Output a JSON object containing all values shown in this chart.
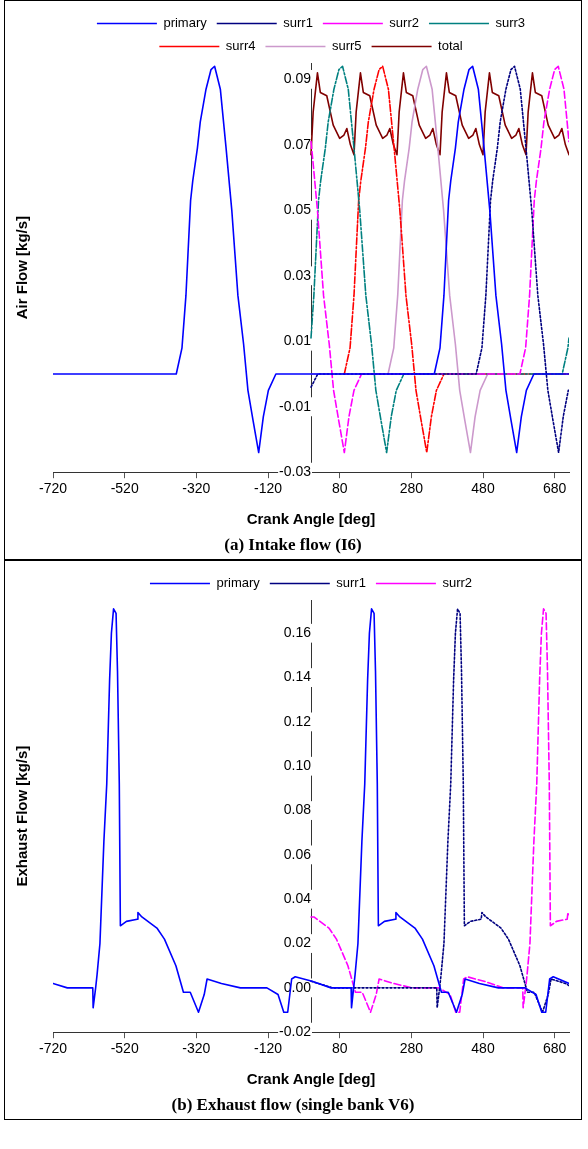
{
  "chart_data": [
    {
      "type": "line",
      "title": "(a)  Intake flow (I6)",
      "xlabel": "Crank Angle [deg]",
      "ylabel": "Air Flow [kg/s]",
      "legend": "top",
      "xlim": [
        -720,
        720
      ],
      "xticks": [
        -720,
        -520,
        -320,
        -120,
        80,
        280,
        480,
        680
      ],
      "ylim": [
        -0.03,
        0.095
      ],
      "yticks": [
        -0.03,
        -0.01,
        0.01,
        0.03,
        0.05,
        0.07,
        0.09
      ],
      "series": [
        {
          "name": "primary",
          "color": "#0000ff",
          "line_style": "solid",
          "x": [
            -720,
            -376,
            -360,
            -349,
            -336,
            -330,
            -317,
            -309,
            -293,
            -279,
            -269,
            -253,
            -237,
            -221,
            -204,
            -188,
            -176,
            -162,
            -146,
            -133,
            -119,
            -98,
            344,
            360,
            371,
            384,
            390,
            403,
            411,
            427,
            441,
            451,
            467,
            483,
            499,
            516,
            532,
            544,
            558,
            574,
            587,
            601,
            622,
            720
          ],
          "values": [
            0,
            0,
            0.008,
            0.024,
            0.053,
            0.059,
            0.069,
            0.077,
            0.087,
            0.093,
            0.094,
            0.087,
            0.069,
            0.05,
            0.024,
            0.009,
            -0.005,
            -0.014,
            -0.024,
            -0.013,
            -0.005,
            0,
            0,
            0.008,
            0.024,
            0.053,
            0.059,
            0.069,
            0.077,
            0.087,
            0.093,
            0.094,
            0.087,
            0.069,
            0.05,
            0.024,
            0.009,
            -0.005,
            -0.014,
            -0.024,
            -0.013,
            -0.005,
            0,
            0
          ]
        },
        {
          "name": "surr1",
          "color": "#000080",
          "line_style": "dotted",
          "x": [
            0,
            19,
            461,
            477,
            488,
            501,
            507,
            520,
            528,
            544,
            558,
            568,
            584,
            600,
            616,
            633,
            649,
            661,
            675,
            691,
            704,
            718,
            720
          ],
          "values": [
            -0.004,
            0,
            0,
            0.008,
            0.024,
            0.053,
            0.059,
            0.069,
            0.077,
            0.087,
            0.093,
            0.094,
            0.087,
            0.069,
            0.05,
            0.024,
            0.009,
            -0.005,
            -0.014,
            -0.024,
            -0.013,
            -0.005,
            -0.005
          ]
        },
        {
          "name": "surr2",
          "color": "#ff00ff",
          "line_style": "dashed",
          "x": [
            0,
            2,
            18,
            35,
            51,
            63,
            77,
            93,
            106,
            120,
            141,
            583,
            599,
            610,
            623,
            629,
            642,
            650,
            666,
            680,
            690,
            706,
            720
          ],
          "values": [
            0.071,
            0.069,
            0.05,
            0.024,
            0.009,
            -0.005,
            -0.014,
            -0.024,
            -0.013,
            -0.005,
            0,
            0,
            0.008,
            0.024,
            0.053,
            0.059,
            0.069,
            0.077,
            0.087,
            0.093,
            0.094,
            0.087,
            0.071
          ]
        },
        {
          "name": "surr3",
          "color": "#008080",
          "line_style": "dashdot",
          "x": [
            0,
            8,
            21,
            27,
            40,
            48,
            64,
            78,
            88,
            104,
            120,
            136,
            153,
            169,
            181,
            195,
            211,
            224,
            238,
            259,
            701,
            717,
            720
          ],
          "values": [
            0.011,
            0.024,
            0.053,
            0.059,
            0.069,
            0.077,
            0.087,
            0.093,
            0.094,
            0.087,
            0.069,
            0.05,
            0.024,
            0.009,
            -0.005,
            -0.014,
            -0.024,
            -0.013,
            -0.005,
            0,
            0,
            0.008,
            0.011
          ]
        },
        {
          "name": "surr4",
          "color": "#ff0000",
          "line_style": "dashdot",
          "x": [
            93,
            109,
            120,
            133,
            139,
            152,
            160,
            176,
            190,
            200,
            216,
            232,
            248,
            265,
            281,
            293,
            307,
            323,
            336,
            350,
            371,
            720
          ],
          "values": [
            0,
            0.008,
            0.024,
            0.053,
            0.059,
            0.069,
            0.077,
            0.087,
            0.093,
            0.094,
            0.087,
            0.069,
            0.05,
            0.024,
            0.009,
            -0.005,
            -0.014,
            -0.024,
            -0.013,
            -0.005,
            0,
            0
          ]
        },
        {
          "name": "surr5",
          "color": "#cc99cc",
          "line_style": "solid",
          "x": [
            0,
            215,
            231,
            242,
            255,
            261,
            274,
            282,
            298,
            312,
            322,
            338,
            354,
            370,
            387,
            403,
            415,
            429,
            445,
            458,
            472,
            493,
            720
          ],
          "values": [
            0,
            0,
            0.008,
            0.024,
            0.053,
            0.059,
            0.069,
            0.077,
            0.087,
            0.093,
            0.094,
            0.087,
            0.069,
            0.05,
            0.024,
            0.009,
            -0.005,
            -0.014,
            -0.024,
            -0.013,
            -0.005,
            0,
            0
          ]
        },
        {
          "name": "total",
          "color": "#800000",
          "line_style": "solid",
          "x": [
            0,
            6,
            18,
            26,
            44,
            62,
            80,
            92,
            100,
            110,
            120,
            126,
            138,
            146,
            164,
            182,
            200,
            212,
            220,
            230,
            240,
            246,
            258,
            266,
            284,
            302,
            320,
            332,
            340,
            350,
            360,
            366,
            378,
            386,
            404,
            422,
            440,
            452,
            460,
            470,
            480,
            486,
            498,
            506,
            524,
            542,
            560,
            572,
            580,
            590,
            600,
            606,
            618,
            626,
            644,
            662,
            680,
            692,
            700,
            710,
            720
          ],
          "values": [
            0.067,
            0.08,
            0.092,
            0.086,
            0.085,
            0.076,
            0.072,
            0.073,
            0.075,
            0.07,
            0.067,
            0.08,
            0.092,
            0.086,
            0.085,
            0.076,
            0.072,
            0.073,
            0.075,
            0.07,
            0.067,
            0.08,
            0.092,
            0.086,
            0.085,
            0.076,
            0.072,
            0.073,
            0.075,
            0.07,
            0.067,
            0.08,
            0.092,
            0.086,
            0.085,
            0.076,
            0.072,
            0.073,
            0.075,
            0.07,
            0.067,
            0.08,
            0.092,
            0.086,
            0.085,
            0.076,
            0.072,
            0.073,
            0.075,
            0.07,
            0.067,
            0.08,
            0.092,
            0.086,
            0.085,
            0.076,
            0.072,
            0.073,
            0.075,
            0.07,
            0.067
          ]
        }
      ]
    },
    {
      "type": "line",
      "title": "(b)  Exhaust flow (single bank V6)",
      "xlabel": "Crank Angle [deg]",
      "ylabel": "Exhaust Flow [kg/s]",
      "legend": "top",
      "xlim": [
        -720,
        720
      ],
      "xticks": [
        -720,
        -520,
        -320,
        -120,
        80,
        280,
        480,
        680
      ],
      "ylim": [
        -0.02,
        0.175
      ],
      "yticks": [
        {
          "value": -0.02,
          "label": "-0.02"
        },
        {
          "value": 0,
          "label": "0.00"
        },
        {
          "value": 0.02,
          "label": "0.02"
        },
        {
          "value": 0.04,
          "label": "0.04"
        },
        {
          "value": 0.06,
          "label": "0.06"
        },
        {
          "value": 0.08,
          "label": "0.08"
        },
        {
          "value": 0.1,
          "label": "0.10"
        },
        {
          "value": 0.12,
          "label": "0.12"
        },
        {
          "value": 0.14,
          "label": "0.14"
        },
        {
          "value": 0.16,
          "label": "0.16"
        }
      ],
      "series": [
        {
          "name": "primary",
          "color": "#0000ff",
          "line_style": "solid",
          "x": [
            -720,
            -680,
            -609,
            -608,
            -601,
            -597,
            -589,
            -578,
            -570,
            -562,
            -557,
            -551,
            -544,
            -540,
            -535,
            -532,
            -515,
            -485,
            -483,
            -472,
            -430,
            -409,
            -377,
            -356,
            -337,
            -314,
            -298,
            -290,
            -250,
            -197,
            -123,
            -92,
            -76,
            -65,
            -54,
            -44,
            3,
            56,
            112,
            113,
            119,
            123,
            131,
            142,
            150,
            158,
            163,
            169,
            176,
            180,
            185,
            188,
            205,
            235,
            237,
            248,
            290,
            311,
            343,
            364,
            383,
            406,
            422,
            430,
            470,
            523,
            597,
            628,
            644,
            655,
            666,
            676,
            720
          ],
          "values": [
            0.002,
            0,
            0,
            -0.009,
            0,
            0.006,
            0.02,
            0.066,
            0.092,
            0.139,
            0.16,
            0.171,
            0.169,
            0.143,
            0.092,
            0.028,
            0.03,
            0.031,
            0.034,
            0.032,
            0.027,
            0.022,
            0.01,
            -0.002,
            -0.002,
            -0.011,
            -0.003,
            0.004,
            0.002,
            0,
            0,
            -0.003,
            -0.011,
            -0.011,
            0.004,
            0.005,
            0.003,
            0,
            0,
            -0.009,
            0,
            0.006,
            0.02,
            0.066,
            0.092,
            0.139,
            0.16,
            0.171,
            0.169,
            0.143,
            0.092,
            0.028,
            0.03,
            0.031,
            0.034,
            0.032,
            0.027,
            0.022,
            0.01,
            -0.002,
            -0.002,
            -0.011,
            -0.003,
            0.004,
            0.002,
            0,
            0,
            -0.003,
            -0.011,
            -0.011,
            0.004,
            0.005,
            0.002
          ]
        },
        {
          "name": "surr1",
          "color": "#000080",
          "line_style": "dotted",
          "x": [
            0,
            60,
            351,
            352,
            359,
            363,
            371,
            382,
            390,
            398,
            403,
            409,
            416,
            420,
            425,
            428,
            445,
            475,
            477,
            488,
            530,
            551,
            583,
            604,
            623,
            646,
            662,
            670,
            710,
            720
          ],
          "values": [
            0.003,
            0,
            0,
            -0.009,
            0,
            0.006,
            0.02,
            0.066,
            0.092,
            0.139,
            0.16,
            0.171,
            0.169,
            0.143,
            0.092,
            0.028,
            0.03,
            0.031,
            0.034,
            0.032,
            0.027,
            0.022,
            0.01,
            -0.002,
            -0.002,
            -0.011,
            -0.003,
            0.004,
            0.002,
            0.001
          ]
        },
        {
          "name": "surr2",
          "color": "#ff00ff",
          "line_style": "dashed",
          "x": [
            0,
            8,
            50,
            71,
            103,
            124,
            143,
            166,
            182,
            190,
            230,
            283,
            357,
            388,
            404,
            415,
            426,
            436,
            483,
            536,
            591,
            592,
            599,
            603,
            611,
            622,
            630,
            638,
            643,
            649,
            656,
            660,
            665,
            668,
            685,
            715,
            717,
            720
          ],
          "values": [
            0.032,
            0.032,
            0.027,
            0.022,
            0.01,
            -0.002,
            -0.002,
            -0.011,
            -0.003,
            0.004,
            0.002,
            0,
            0,
            -0.003,
            -0.011,
            -0.011,
            0.004,
            0.005,
            0.003,
            0,
            0,
            -0.009,
            0,
            0.006,
            0.02,
            0.066,
            0.092,
            0.139,
            0.16,
            0.171,
            0.169,
            0.143,
            0.092,
            0.028,
            0.03,
            0.031,
            0.034,
            0.033
          ]
        }
      ]
    }
  ]
}
